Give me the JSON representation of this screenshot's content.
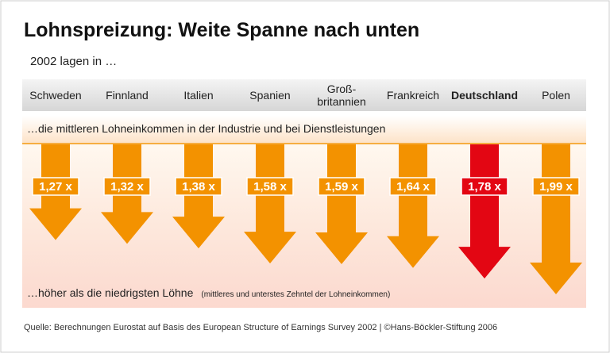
{
  "chart_data": {
    "type": "arrow-bar",
    "title": "Lohnspreizung: Weite Spanne nach unten",
    "subtitle": "2002 lagen in …",
    "top_text": "…die mittleren Lohneinkommen in der Industrie und bei Dienstleistungen",
    "bottom_text": "…höher als die niedrigsten Löhne",
    "bottom_note": "(mittleres und unterstes Zehntel der Lohneinkommen)",
    "source": "Quelle: Berechnungen Eurostat auf Basis des European Structure of Earnings Survey 2002 | ©Hans-Böckler-Stiftung 2006",
    "categories": [
      "Schweden",
      "Finnland",
      "Italien",
      "Spanien",
      "Groß-\nbritannien",
      "Frankreich",
      "Deutschland",
      "Polen"
    ],
    "values": [
      1.27,
      1.32,
      1.38,
      1.58,
      1.59,
      1.64,
      1.78,
      1.99
    ],
    "value_labels": [
      "1,27 x",
      "1,32 x",
      "1,38 x",
      "1,58 x",
      "1,59 x",
      "1,64 x",
      "1,78 x",
      "1,99 x"
    ],
    "color": "#f39200",
    "highlight": {
      "index": 6,
      "color": "#e30613"
    }
  }
}
